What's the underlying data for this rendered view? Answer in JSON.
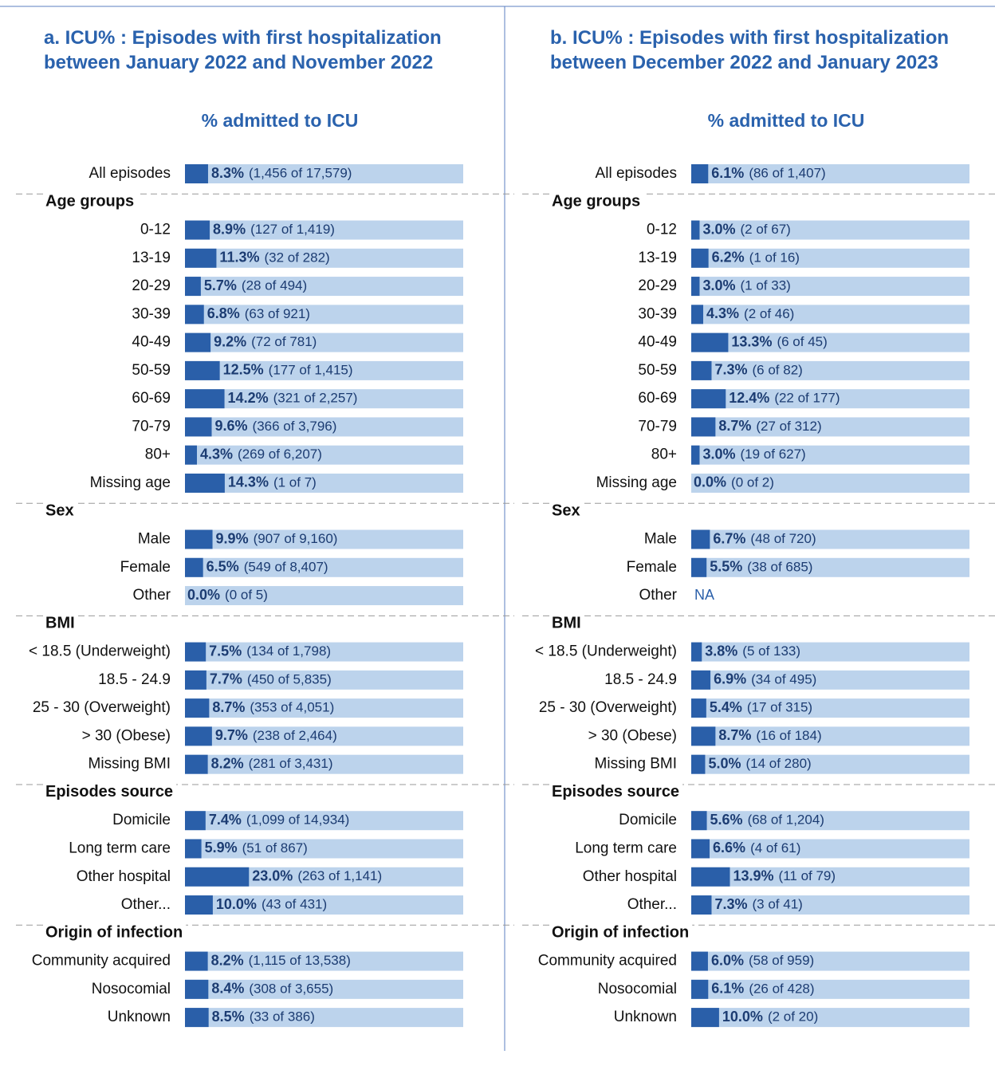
{
  "chart_data": [
    {
      "type": "bar",
      "orientation": "horizontal",
      "title": "a. ICU% : Episodes with first hospitalization between January 2022 and November 2022",
      "axis_label": "% admitted to  ICU",
      "xlim": [
        0,
        100
      ],
      "color": "#2a5fa9",
      "background_color": "#bcd3ec",
      "groups": [
        {
          "categories": [
            "All episodes"
          ],
          "values": [
            8.3
          ],
          "value_labels": [
            "8.3%"
          ],
          "counts": [
            "(1,456 of 17,579)"
          ]
        },
        {
          "name": "Age groups",
          "categories": [
            "0-12",
            "13-19",
            "20-29",
            "30-39",
            "40-49",
            "50-59",
            "60-69",
            "70-79",
            "80+",
            "Missing age"
          ],
          "values": [
            8.9,
            11.3,
            5.7,
            6.8,
            9.2,
            12.5,
            14.2,
            9.6,
            4.3,
            14.3
          ],
          "value_labels": [
            "8.9%",
            "11.3%",
            "5.7%",
            "6.8%",
            "9.2%",
            "12.5%",
            "14.2%",
            "9.6%",
            "4.3%",
            "14.3%"
          ],
          "counts": [
            "(127 of 1,419)",
            "(32 of 282)",
            "(28 of 494)",
            "(63 of 921)",
            "(72 of 781)",
            "(177 of 1,415)",
            "(321 of 2,257)",
            "(366 of 3,796)",
            "(269 of 6,207)",
            "(1 of 7)"
          ]
        },
        {
          "name": "Sex",
          "categories": [
            "Male",
            "Female",
            "Other"
          ],
          "values": [
            9.9,
            6.5,
            0
          ],
          "value_labels": [
            "9.9%",
            "6.5%",
            "0.0%"
          ],
          "counts": [
            "(907 of 9,160)",
            "(549 of 8,407)",
            "(0 of 5)"
          ]
        },
        {
          "name": "BMI",
          "categories": [
            "< 18.5 (Underweight)",
            "18.5 - 24.9",
            "25 - 30 (Overweight)",
            "> 30 (Obese)",
            "Missing BMI"
          ],
          "values": [
            7.5,
            7.7,
            8.7,
            9.7,
            8.2
          ],
          "value_labels": [
            "7.5%",
            "7.7%",
            "8.7%",
            "9.7%",
            "8.2%"
          ],
          "counts": [
            "(134 of 1,798)",
            "(450 of 5,835)",
            "(353 of 4,051)",
            "(238 of 2,464)",
            "(281 of 3,431)"
          ]
        },
        {
          "name": "Episodes source",
          "categories": [
            "Domicile",
            "Long term care",
            "Other hospital",
            "Other..."
          ],
          "values": [
            7.4,
            5.9,
            23.0,
            10.0
          ],
          "value_labels": [
            "7.4%",
            "5.9%",
            "23.0%",
            "10.0%"
          ],
          "counts": [
            "(1,099 of 14,934)",
            "(51 of 867)",
            "(263 of 1,141)",
            "(43 of 431)"
          ]
        },
        {
          "name": "Origin of infection",
          "categories": [
            "Community acquired",
            "Nosocomial",
            "Unknown"
          ],
          "values": [
            8.2,
            8.4,
            8.5
          ],
          "value_labels": [
            "8.2%",
            "8.4%",
            "8.5%"
          ],
          "counts": [
            "(1,115 of 13,538)",
            "(308 of 3,655)",
            "(33 of 386)"
          ]
        }
      ]
    },
    {
      "type": "bar",
      "orientation": "horizontal",
      "title": "b. ICU% : Episodes with first hospitalization between December 2022 and January 2023",
      "axis_label": "% admitted to  ICU",
      "xlim": [
        0,
        100
      ],
      "color": "#2a5fa9",
      "background_color": "#bcd3ec",
      "groups": [
        {
          "categories": [
            "All episodes"
          ],
          "values": [
            6.1
          ],
          "value_labels": [
            "6.1%"
          ],
          "counts": [
            "(86 of 1,407)"
          ]
        },
        {
          "name": "Age groups",
          "categories": [
            "0-12",
            "13-19",
            "20-29",
            "30-39",
            "40-49",
            "50-59",
            "60-69",
            "70-79",
            "80+",
            "Missing age"
          ],
          "values": [
            3.0,
            6.2,
            3.0,
            4.3,
            13.3,
            7.3,
            12.4,
            8.7,
            3.0,
            0
          ],
          "value_labels": [
            "3.0%",
            "6.2%",
            "3.0%",
            "4.3%",
            "13.3%",
            "7.3%",
            "12.4%",
            "8.7%",
            "3.0%",
            "0.0%"
          ],
          "counts": [
            "(2 of 67)",
            "(1 of 16)",
            "(1 of 33)",
            "(2 of 46)",
            "(6 of 45)",
            "(6 of 82)",
            "(22 of 177)",
            "(27 of 312)",
            "(19 of 627)",
            "(0 of 2)"
          ]
        },
        {
          "name": "Sex",
          "categories": [
            "Male",
            "Female",
            "Other"
          ],
          "values": [
            6.7,
            5.5,
            null
          ],
          "value_labels": [
            "6.7%",
            "5.5%",
            "NA"
          ],
          "counts": [
            "(48 of 720)",
            "(38 of 685)",
            null
          ]
        },
        {
          "name": "BMI",
          "categories": [
            "< 18.5 (Underweight)",
            "18.5 - 24.9",
            "25 - 30 (Overweight)",
            "> 30 (Obese)",
            "Missing BMI"
          ],
          "values": [
            3.8,
            6.9,
            5.4,
            8.7,
            5.0
          ],
          "value_labels": [
            "3.8%",
            "6.9%",
            "5.4%",
            "8.7%",
            "5.0%"
          ],
          "counts": [
            "(5 of 133)",
            "(34 of 495)",
            "(17 of 315)",
            "(16 of 184)",
            "(14 of 280)"
          ]
        },
        {
          "name": "Episodes source",
          "categories": [
            "Domicile",
            "Long term care",
            "Other hospital",
            "Other..."
          ],
          "values": [
            5.6,
            6.6,
            13.9,
            7.3
          ],
          "value_labels": [
            "5.6%",
            "6.6%",
            "13.9%",
            "7.3%"
          ],
          "counts": [
            "(68 of 1,204)",
            "(4 of 61)",
            "(11 of 79)",
            "(3 of 41)"
          ]
        },
        {
          "name": "Origin of infection",
          "categories": [
            "Community acquired",
            "Nosocomial",
            "Unknown"
          ],
          "values": [
            6.0,
            6.1,
            10.0
          ],
          "value_labels": [
            "6.0%",
            "6.1%",
            "10.0%"
          ],
          "counts": [
            "(58 of 959)",
            "(26 of 428)",
            "(2 of 20)"
          ]
        }
      ]
    }
  ]
}
